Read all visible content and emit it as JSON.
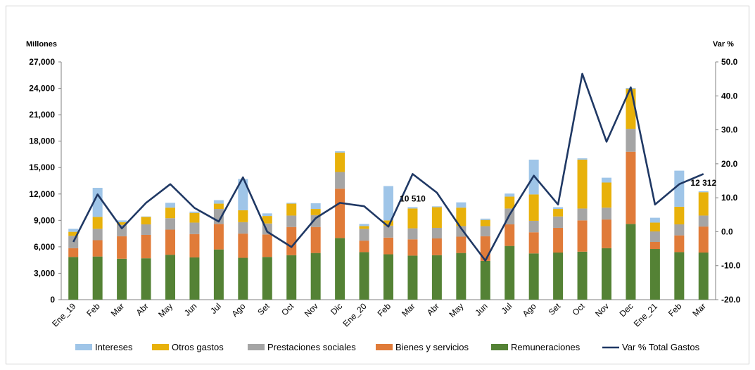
{
  "chart_data": {
    "type": "bar",
    "stacked": true,
    "ylabel_left": "Millones",
    "ylabel_right": "Var %",
    "ylim_left": [
      0,
      27000
    ],
    "yticks_left": [
      "27,000",
      "24,000",
      "21,000",
      "18,000",
      "15,000",
      "12,000",
      "9,000",
      "6,000",
      "3,000",
      "0"
    ],
    "ylim_right": [
      -20,
      50
    ],
    "yticks_right": [
      "50.0",
      "40.0",
      "30.0",
      "20.0",
      "10.0",
      "0.0",
      "-10.0",
      "-20.0"
    ],
    "categories": [
      "Ene_19",
      "Feb",
      "Mar",
      "Abr",
      "May",
      "Jun",
      "Jul",
      "Ago",
      "Set",
      "Oct",
      "Nov",
      "Dic",
      "Ene_20",
      "Feb",
      "Mar",
      "Abr",
      "May",
      "Jun",
      "Jul",
      "Ago",
      "Set",
      "Oct",
      "Nov",
      "Dec",
      "Ene_21",
      "Feb",
      "Mar"
    ],
    "series": [
      {
        "name": "Remuneraciones",
        "color": "#548235",
        "values": [
          4850,
          4900,
          4650,
          4700,
          5100,
          4800,
          5700,
          4750,
          4850,
          5050,
          5300,
          7000,
          5400,
          5150,
          5000,
          5050,
          5300,
          4400,
          6100,
          5250,
          5350,
          5450,
          5850,
          8600,
          5750,
          5400,
          5350
        ]
      },
      {
        "name": "Bienes y servicios",
        "color": "#e07b39",
        "values": [
          1000,
          1850,
          2550,
          2650,
          2850,
          2650,
          2900,
          2750,
          2550,
          3200,
          2950,
          5600,
          1300,
          1900,
          1850,
          1900,
          1850,
          2800,
          2450,
          2400,
          2800,
          3550,
          3250,
          8200,
          800,
          1900,
          2950
        ]
      },
      {
        "name": "Prestaciones sociales",
        "color": "#a5a5a5",
        "values": [
          1400,
          1300,
          1300,
          1200,
          1300,
          1300,
          1700,
          1300,
          1250,
          1300,
          1350,
          1900,
          1350,
          1350,
          1250,
          1200,
          1200,
          1150,
          1800,
          1300,
          1300,
          1350,
          1350,
          2600,
          1200,
          1250,
          1250
        ]
      },
      {
        "name": "Otros gastos",
        "color": "#e8b10a",
        "values": [
          450,
          1350,
          300,
          850,
          1200,
          1100,
          600,
          1350,
          850,
          1350,
          700,
          2200,
          300,
          600,
          2250,
          2350,
          2100,
          700,
          1350,
          3000,
          850,
          5550,
          2850,
          4550,
          1000,
          2000,
          2650
        ]
      },
      {
        "name": "Intereses",
        "color": "#9fc5e8",
        "values": [
          350,
          3300,
          200,
          50,
          550,
          150,
          400,
          3550,
          300,
          100,
          650,
          150,
          250,
          3900,
          160,
          100,
          600,
          150,
          350,
          3950,
          200,
          150,
          550,
          100,
          550,
          4100,
          112
        ]
      }
    ],
    "line": {
      "name": "Var % Total Gastos",
      "color": "#1f3864",
      "values": [
        -3,
        11,
        1,
        8.5,
        14,
        7,
        3,
        16,
        0,
        -4.5,
        4,
        8.5,
        7.5,
        1.5,
        17,
        11.5,
        1,
        -8.5,
        5,
        16.5,
        8,
        46.5,
        26.5,
        42.5,
        8,
        14,
        17
      ]
    },
    "annotations": [
      {
        "category_index": 14,
        "text": "10 510"
      },
      {
        "category_index": 26,
        "text": "12 312"
      }
    ],
    "legend_position": "bottom",
    "grid": false
  }
}
